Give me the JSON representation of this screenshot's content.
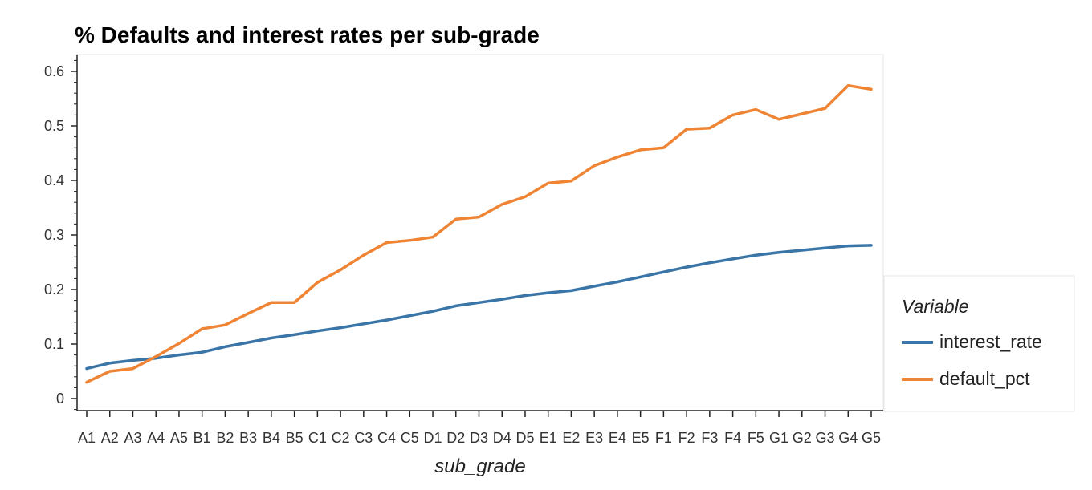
{
  "chart_data": {
    "type": "line",
    "title": "% Defaults and interest rates per sub-grade",
    "xlabel": "sub_grade",
    "ylabel": "",
    "ylim": [
      -0.02,
      0.63
    ],
    "yticks": [
      0,
      0.1,
      0.2,
      0.3,
      0.4,
      0.5,
      0.6
    ],
    "ytick_labels": [
      "0",
      "0.1",
      "0.2",
      "0.3",
      "0.4",
      "0.5",
      "0.6"
    ],
    "grid": false,
    "legend": {
      "title": "Variable",
      "placement": "right"
    },
    "categories": [
      "A1",
      "A2",
      "A3",
      "A4",
      "A5",
      "B1",
      "B2",
      "B3",
      "B4",
      "B5",
      "C1",
      "C2",
      "C3",
      "C4",
      "C5",
      "D1",
      "D2",
      "D3",
      "D4",
      "D5",
      "E1",
      "E2",
      "E3",
      "E4",
      "E5",
      "F1",
      "F2",
      "F3",
      "F4",
      "F5",
      "G1",
      "G2",
      "G3",
      "G4",
      "G5"
    ],
    "series": [
      {
        "name": "interest_rate",
        "color": "#3a75a8",
        "values": [
          0.055,
          0.065,
          0.07,
          0.074,
          0.08,
          0.085,
          0.095,
          0.103,
          0.111,
          0.117,
          0.124,
          0.13,
          0.137,
          0.144,
          0.152,
          0.16,
          0.17,
          0.176,
          0.182,
          0.189,
          0.194,
          0.198,
          0.206,
          0.214,
          0.223,
          0.232,
          0.241,
          0.249,
          0.256,
          0.263,
          0.268,
          0.272,
          0.276,
          0.28,
          0.281
        ]
      },
      {
        "name": "default_pct",
        "color": "#ef8534",
        "values": [
          0.03,
          0.05,
          0.055,
          0.077,
          0.101,
          0.128,
          0.135,
          0.156,
          0.176,
          0.176,
          0.213,
          0.236,
          0.263,
          0.286,
          0.29,
          0.296,
          0.329,
          0.333,
          0.356,
          0.37,
          0.395,
          0.399,
          0.427,
          0.443,
          0.456,
          0.46,
          0.494,
          0.496,
          0.52,
          0.53,
          0.512,
          0.522,
          0.532,
          0.574,
          0.567
        ]
      }
    ]
  }
}
